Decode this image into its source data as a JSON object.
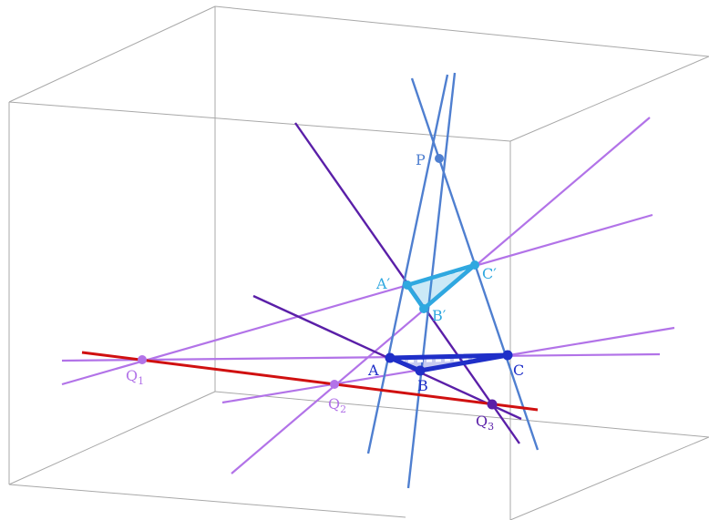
{
  "colors": {
    "box_edge": "#a8a8a8",
    "perspective_line": "#4f7fd0",
    "triangle_abc": "#1f2fc8",
    "triangle_abc_prime": "#2fa8e0",
    "violet_line": "#b273e8",
    "purple_line": "#5a1fa8",
    "axis_line": "#d01010",
    "label_top": "#4f7fd0",
    "label_abc": "#1f2fc8",
    "label_prime": "#2fa8e0",
    "label_q": "#b273e8",
    "label_q3": "#5a1fa8"
  },
  "labels": {
    "P": "P",
    "A": "A",
    "B": "B",
    "C": "C",
    "A_prime": "A′",
    "B_prime": "B′",
    "C_prime": "C′",
    "Q1_base": "Q",
    "Q1_sub": "1",
    "Q2_base": "Q",
    "Q2_sub": "2",
    "Q3_base": "Q",
    "Q3_sub": "3"
  }
}
